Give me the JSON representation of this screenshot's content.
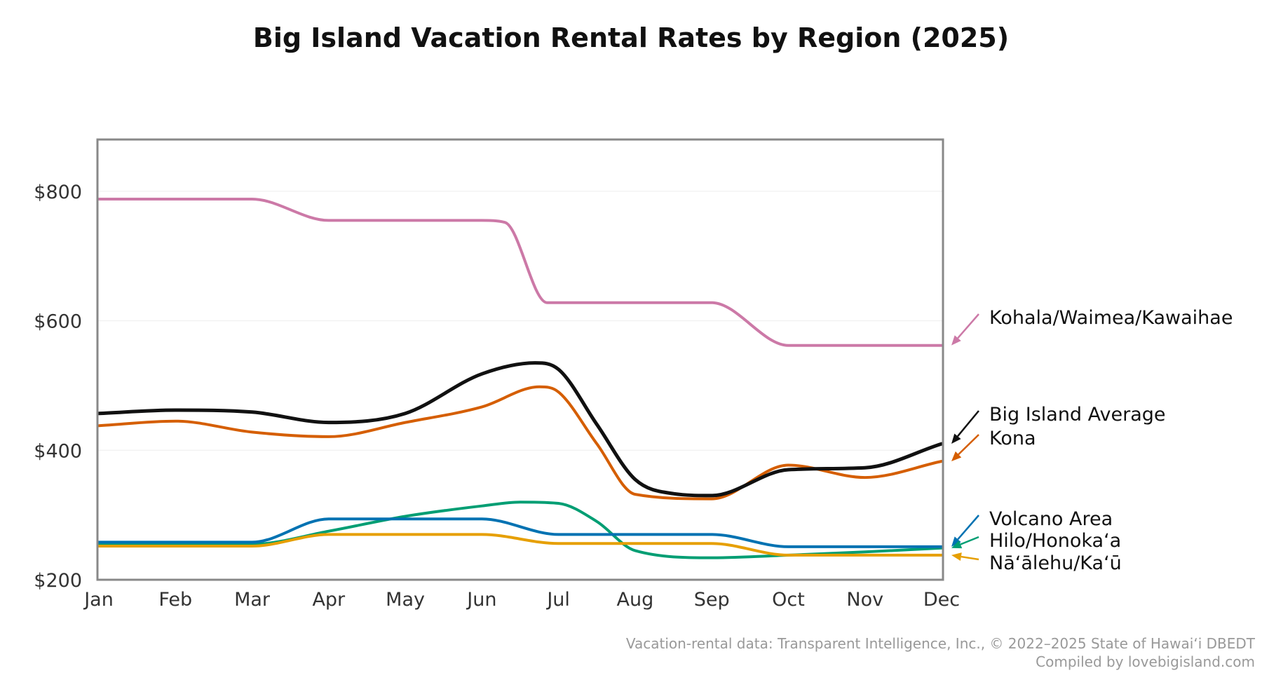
{
  "chart_data": {
    "type": "line",
    "title": "Big Island Vacation Rental Rates by Region (2025)",
    "xlabel": "",
    "ylabel": "",
    "categories": [
      "Jan",
      "Feb",
      "Mar",
      "Apr",
      "May",
      "Jun",
      "Jul",
      "Aug",
      "Sep",
      "Oct",
      "Nov",
      "Dec"
    ],
    "x": [
      1,
      2,
      3,
      4,
      5,
      6,
      7,
      8,
      9,
      10,
      11,
      12
    ],
    "xlim": [
      1,
      12
    ],
    "ylim": [
      200,
      880
    ],
    "yticks": [
      200,
      400,
      600,
      800
    ],
    "ytick_labels": [
      "$200",
      "$400",
      "$600",
      "$800"
    ],
    "grid": "horizontal, faint",
    "legend": "right, labels at line ends",
    "series": [
      {
        "name": "Kohala/Waimea/Kawaihae",
        "color": "#CC79A7",
        "points": [
          [
            1,
            788
          ],
          [
            2,
            788
          ],
          [
            3,
            788
          ],
          [
            4,
            755
          ],
          [
            5,
            755
          ],
          [
            6,
            755
          ],
          [
            6.3,
            752
          ],
          [
            6.85,
            628
          ],
          [
            7,
            628
          ],
          [
            8,
            628
          ],
          [
            9,
            628
          ],
          [
            10,
            562
          ],
          [
            11,
            562
          ],
          [
            12,
            562
          ]
        ]
      },
      {
        "name": "Big Island Average",
        "color": "#111111",
        "points": [
          [
            1,
            457
          ],
          [
            2,
            462
          ],
          [
            3,
            459
          ],
          [
            4,
            443
          ],
          [
            5,
            457
          ],
          [
            6,
            518
          ],
          [
            6.7,
            535
          ],
          [
            7,
            525
          ],
          [
            7.5,
            440
          ],
          [
            8,
            355
          ],
          [
            8.5,
            333
          ],
          [
            9,
            330
          ],
          [
            10,
            370
          ],
          [
            11,
            373
          ],
          [
            12,
            410
          ]
        ]
      },
      {
        "name": "Kona",
        "color": "#D55E00",
        "points": [
          [
            1,
            438
          ],
          [
            2,
            445
          ],
          [
            3,
            428
          ],
          [
            4,
            421
          ],
          [
            5,
            443
          ],
          [
            6,
            467
          ],
          [
            6.75,
            498
          ],
          [
            7,
            490
          ],
          [
            7.5,
            410
          ],
          [
            8,
            332
          ],
          [
            9,
            325
          ],
          [
            10,
            377
          ],
          [
            11,
            358
          ],
          [
            12,
            383
          ]
        ]
      },
      {
        "name": "Volcano Area",
        "color": "#0072B2",
        "points": [
          [
            1,
            258
          ],
          [
            2,
            258
          ],
          [
            3,
            258
          ],
          [
            4,
            294
          ],
          [
            5,
            294
          ],
          [
            6,
            294
          ],
          [
            7,
            270
          ],
          [
            8,
            270
          ],
          [
            9,
            270
          ],
          [
            10,
            251
          ],
          [
            11,
            251
          ],
          [
            12,
            251
          ]
        ]
      },
      {
        "name": "Hilo/Honokaʻa",
        "color": "#009E73",
        "points": [
          [
            1,
            255
          ],
          [
            2,
            255
          ],
          [
            3,
            255
          ],
          [
            4,
            275
          ],
          [
            5,
            298
          ],
          [
            6,
            314
          ],
          [
            6.5,
            320
          ],
          [
            7,
            318
          ],
          [
            7.5,
            290
          ],
          [
            8,
            245
          ],
          [
            9,
            234
          ],
          [
            10,
            238
          ],
          [
            11,
            243
          ],
          [
            12,
            249
          ]
        ]
      },
      {
        "name": "Nāʻālehu/Kaʻū",
        "color": "#E69F00",
        "points": [
          [
            1,
            252
          ],
          [
            2,
            252
          ],
          [
            3,
            252
          ],
          [
            4,
            270
          ],
          [
            5,
            270
          ],
          [
            6,
            270
          ],
          [
            7,
            256
          ],
          [
            8,
            256
          ],
          [
            9,
            256
          ],
          [
            10,
            238
          ],
          [
            11,
            238
          ],
          [
            12,
            238
          ]
        ]
      }
    ],
    "legend_labels": [
      {
        "series": 0,
        "text": "Kohala/Waimea/Kawaihae"
      },
      {
        "series": 1,
        "text": "Big Island Average"
      },
      {
        "series": 2,
        "text": "Kona"
      },
      {
        "series": 3,
        "text": "Volcano Area"
      },
      {
        "series": 4,
        "text": "Hilo/Honokaʻa"
      },
      {
        "series": 5,
        "text": "Nāʻālehu/Kaʻū"
      }
    ]
  },
  "footer": {
    "source": "Vacation-rental data: Transparent Intelligence, Inc., © 2022–2025 State of Hawaiʻi DBEDT",
    "compiled": "Compiled by lovebigisland.com"
  }
}
